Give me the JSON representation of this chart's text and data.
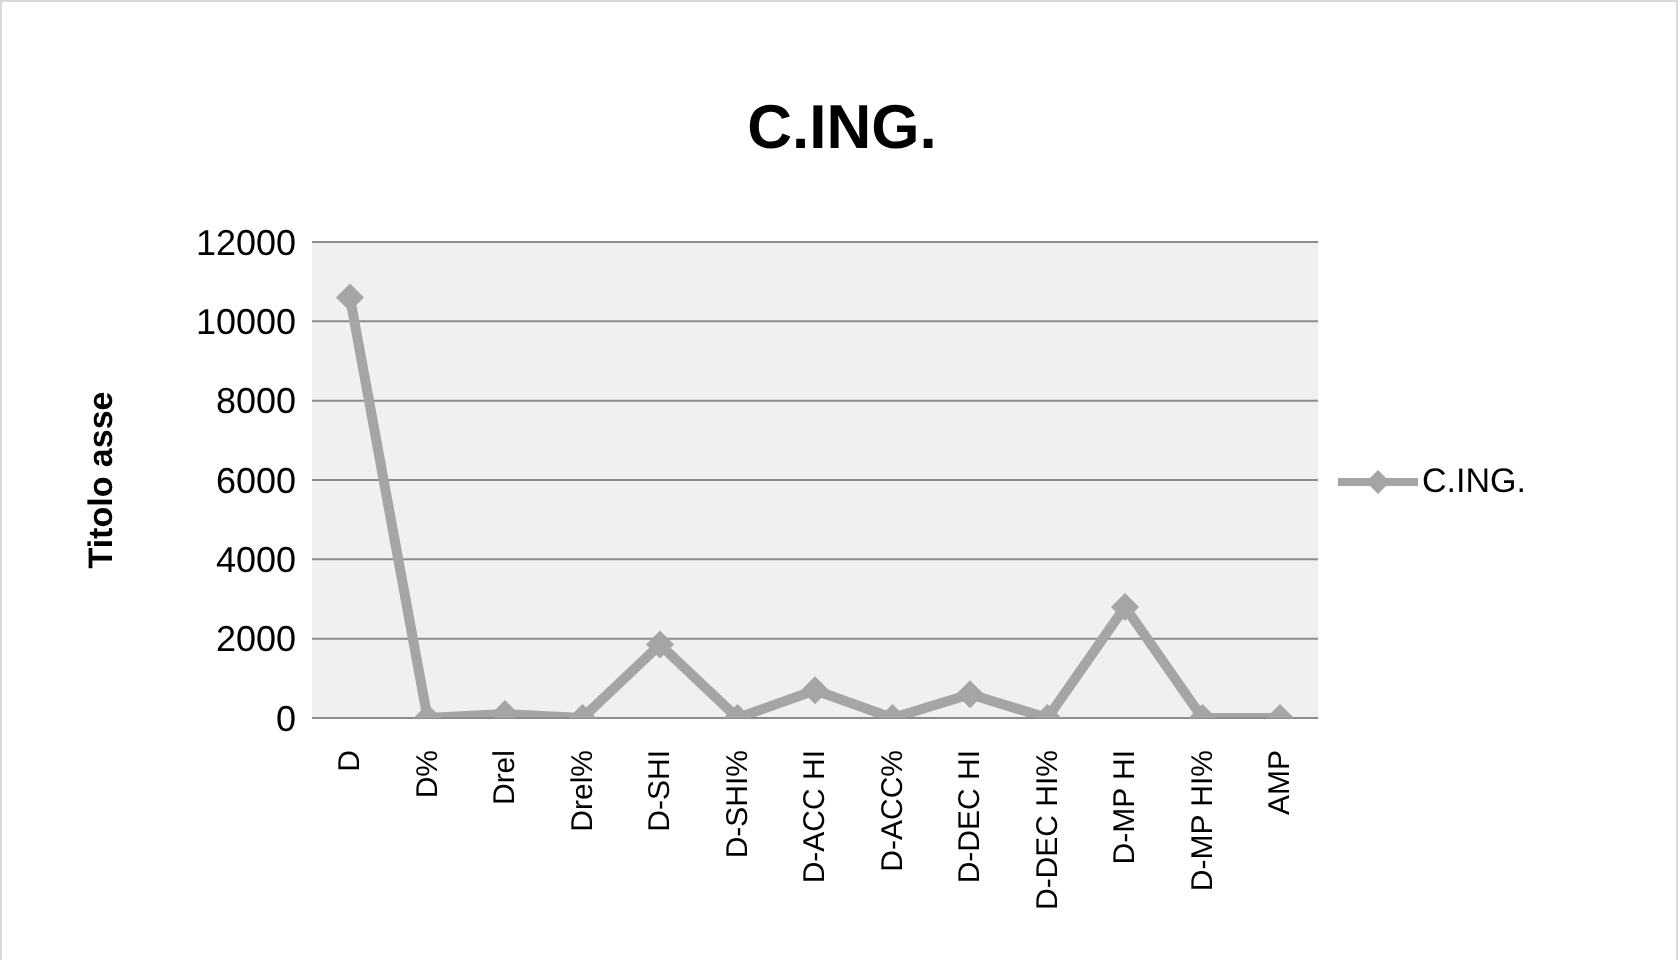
{
  "chart_data": {
    "type": "line",
    "title": "C.ING.",
    "ylabel": "Titolo asse",
    "categories": [
      "D",
      "D%",
      "Drel",
      "Drel%",
      "D-SHI",
      "D-SHI%",
      "D-ACC HI",
      "D-ACC%",
      "D-DEC HI",
      "D-DEC HI%",
      "D-MP HI",
      "D-MP HI%",
      "AMP"
    ],
    "series": [
      {
        "name": "C.ING.",
        "color": "#a5a5a5",
        "values": [
          10600,
          0,
          100,
          0,
          1850,
          0,
          700,
          0,
          600,
          0,
          2800,
          0,
          0
        ]
      }
    ],
    "ylim": [
      0,
      12000
    ],
    "yticks": [
      0,
      2000,
      4000,
      6000,
      8000,
      10000,
      12000
    ],
    "grid": "y",
    "legend": "right",
    "marker": "diamond",
    "line_style": "solid"
  }
}
